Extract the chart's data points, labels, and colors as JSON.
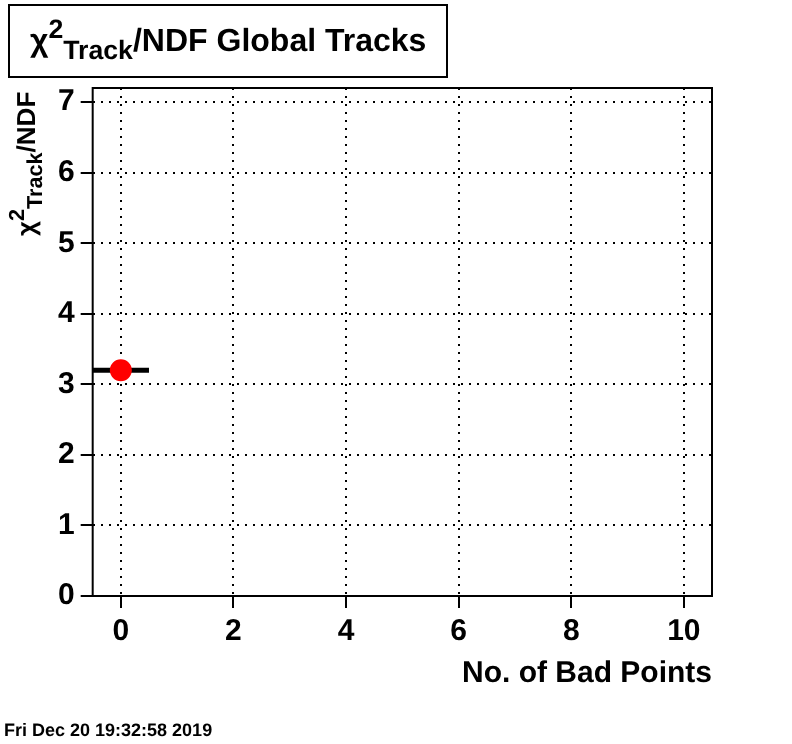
{
  "chart_data": {
    "type": "scatter",
    "title": "χ$^{2}$$_{Track}$/NDF  Global Tracks",
    "xlabel": "No. of Bad Points",
    "ylabel": "χ$^{2}$$_{Track}$/NDF",
    "annotations": [
      "Fri Dec 20 19:32:58 2019"
    ],
    "x": [
      0
    ],
    "series": [
      {
        "color": "#ff0000",
        "values": [
          3.2
        ],
        "xerrors": [
          0.5
        ]
      }
    ],
    "xlim": [
      -0.5,
      10.5
    ],
    "xticks": [
      0,
      2,
      4,
      6,
      8,
      10
    ],
    "ylim": [
      0,
      7.2
    ],
    "yticks": [
      0,
      1,
      2,
      3,
      4,
      5,
      6,
      7
    ],
    "grid": true,
    "marker": "circle",
    "legend": false
  }
}
